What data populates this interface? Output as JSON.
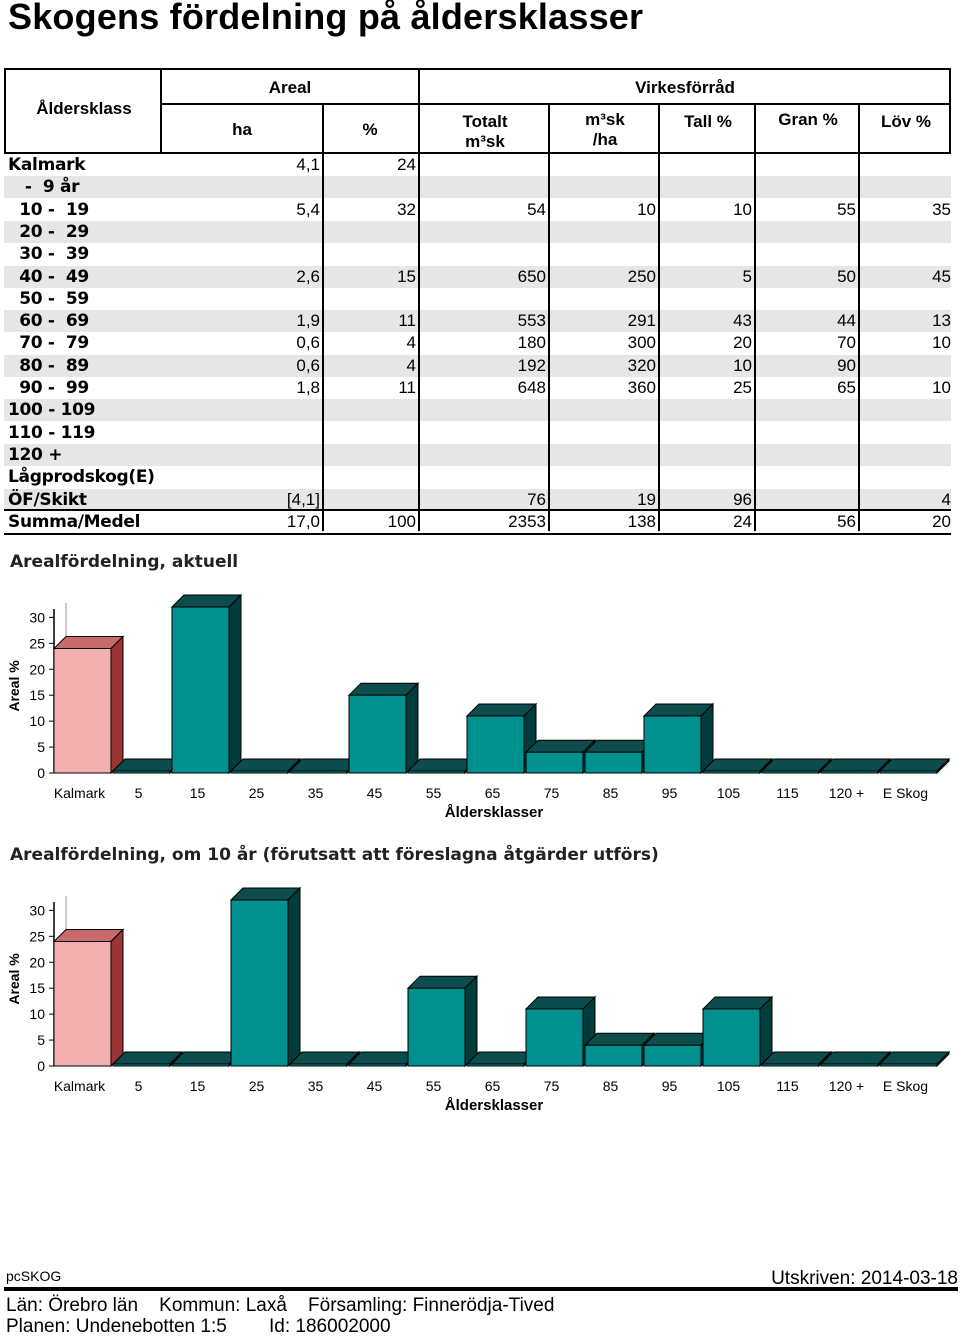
{
  "title": "Skogens fördelning på åldersklasser",
  "table": {
    "headers": {
      "aldersklass": "Åldersklass",
      "areal": "Areal",
      "ha": "ha",
      "pct": "%",
      "virkesforrad": "Virkesförråd",
      "totalt": "Totalt\nm³sk",
      "m3skha": "m³sk\n/ha",
      "tall": "Tall %",
      "gran": "Gran %",
      "lov": "Löv %"
    },
    "rows": [
      {
        "label": "Kalmark",
        "ha": "4,1",
        "pct": "24",
        "totalt": "",
        "m3skha": "",
        "tall": "",
        "gran": "",
        "lov": ""
      },
      {
        "label": "   -  9 år",
        "ha": "",
        "pct": "",
        "totalt": "",
        "m3skha": "",
        "tall": "",
        "gran": "",
        "lov": ""
      },
      {
        "label": "  10 -  19",
        "ha": "5,4",
        "pct": "32",
        "totalt": "54",
        "m3skha": "10",
        "tall": "10",
        "gran": "55",
        "lov": "35"
      },
      {
        "label": "  20 -  29",
        "ha": "",
        "pct": "",
        "totalt": "",
        "m3skha": "",
        "tall": "",
        "gran": "",
        "lov": ""
      },
      {
        "label": "  30 -  39",
        "ha": "",
        "pct": "",
        "totalt": "",
        "m3skha": "",
        "tall": "",
        "gran": "",
        "lov": ""
      },
      {
        "label": "  40 -  49",
        "ha": "2,6",
        "pct": "15",
        "totalt": "650",
        "m3skha": "250",
        "tall": "5",
        "gran": "50",
        "lov": "45"
      },
      {
        "label": "  50 -  59",
        "ha": "",
        "pct": "",
        "totalt": "",
        "m3skha": "",
        "tall": "",
        "gran": "",
        "lov": ""
      },
      {
        "label": "  60 -  69",
        "ha": "1,9",
        "pct": "11",
        "totalt": "553",
        "m3skha": "291",
        "tall": "43",
        "gran": "44",
        "lov": "13"
      },
      {
        "label": "  70 -  79",
        "ha": "0,6",
        "pct": "4",
        "totalt": "180",
        "m3skha": "300",
        "tall": "20",
        "gran": "70",
        "lov": "10"
      },
      {
        "label": "  80 -  89",
        "ha": "0,6",
        "pct": "4",
        "totalt": "192",
        "m3skha": "320",
        "tall": "10",
        "gran": "90",
        "lov": ""
      },
      {
        "label": "  90 -  99",
        "ha": "1,8",
        "pct": "11",
        "totalt": "648",
        "m3skha": "360",
        "tall": "25",
        "gran": "65",
        "lov": "10"
      },
      {
        "label": "100 - 109",
        "ha": "",
        "pct": "",
        "totalt": "",
        "m3skha": "",
        "tall": "",
        "gran": "",
        "lov": ""
      },
      {
        "label": "110 - 119",
        "ha": "",
        "pct": "",
        "totalt": "",
        "m3skha": "",
        "tall": "",
        "gran": "",
        "lov": ""
      },
      {
        "label": "120 +",
        "ha": "",
        "pct": "",
        "totalt": "",
        "m3skha": "",
        "tall": "",
        "gran": "",
        "lov": ""
      },
      {
        "label": "Lågprodskog(E)",
        "ha": "",
        "pct": "",
        "totalt": "",
        "m3skha": "",
        "tall": "",
        "gran": "",
        "lov": ""
      },
      {
        "label": "ÖF/Skikt",
        "ha": "[4,1]",
        "pct": "",
        "totalt": "76",
        "m3skha": "19",
        "tall": "96",
        "gran": "",
        "lov": "4"
      },
      {
        "label": "Summa/Medel",
        "ha": "17,0",
        "pct": "100",
        "totalt": "2353",
        "m3skha": "138",
        "tall": "24",
        "gran": "56",
        "lov": "20"
      }
    ]
  },
  "colors": {
    "kalmark_front": "#f4b0b0",
    "kalmark_side": "#9b3434",
    "kalmark_top": "#c96a6a",
    "forest_front": "#00908e",
    "forest_side": "#003c3c",
    "forest_top": "#0c4c4c",
    "row_shade": "#e6e6e6"
  },
  "chart_data": [
    {
      "type": "bar",
      "title": "Arealfördelning, aktuell",
      "xlabel": "Åldersklasser",
      "ylabel": "Areal %",
      "categories": [
        "Kalmark",
        "5",
        "15",
        "25",
        "35",
        "45",
        "55",
        "65",
        "75",
        "85",
        "95",
        "105",
        "115",
        "120 +",
        "E Skog"
      ],
      "values": [
        24,
        0,
        32,
        0,
        0,
        15,
        0,
        11,
        4,
        4,
        11,
        0,
        0,
        0,
        0
      ],
      "yticks": [
        0,
        5,
        10,
        15,
        20,
        25,
        30
      ],
      "ylim": [
        0,
        32
      ]
    },
    {
      "type": "bar",
      "title": "Arealfördelning, om 10 år (förutsatt att föreslagna åtgärder utförs)",
      "xlabel": "Åldersklasser",
      "ylabel": "Areal %",
      "categories": [
        "Kalmark",
        "5",
        "15",
        "25",
        "35",
        "45",
        "55",
        "65",
        "75",
        "85",
        "95",
        "105",
        "115",
        "120 +",
        "E Skog"
      ],
      "values": [
        24,
        0,
        0,
        32,
        0,
        0,
        15,
        0,
        11,
        4,
        4,
        11,
        0,
        0,
        0
      ],
      "yticks": [
        0,
        5,
        10,
        15,
        20,
        25,
        30
      ],
      "ylim": [
        0,
        32
      ]
    }
  ],
  "footer": {
    "program": "pcSKOG",
    "printed": "Utskriven: 2014-03-18",
    "line1": "Län: Örebro län    Kommun: Laxå    Församling: Finnerödja-Tived",
    "line2": "Planen: Undenebotten 1:5        Id: 186002000"
  }
}
